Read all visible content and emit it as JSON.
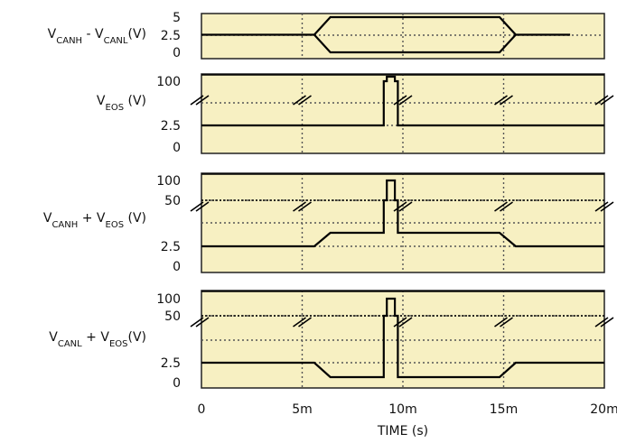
{
  "chart_data": {
    "type": "line",
    "xlabel": "TIME (s)",
    "xlim": [
      0,
      20
    ],
    "x_ticks": [
      {
        "value": 0,
        "label": "0"
      },
      {
        "value": 5,
        "label": "5m"
      },
      {
        "value": 10,
        "label": "10m"
      },
      {
        "value": 15,
        "label": "15m"
      },
      {
        "value": 20,
        "label": "20m"
      }
    ],
    "colors": {
      "panel_fill": "#f7f0c2",
      "trace": "#000000",
      "grid": "#555555"
    },
    "panels": [
      {
        "ylabel": {
          "base": "V",
          "sub1": "CANH",
          "mid": " - V",
          "sub2": "CANL",
          "tail": "(V)"
        },
        "y_ticks": [
          "5",
          "2.5",
          "0"
        ],
        "axis_breaks": false,
        "series": [
          {
            "x": [
              0,
              5.6,
              6.4,
              14.8,
              15.6,
              18.3
            ],
            "y": [
              2.5,
              2.5,
              5.0,
              5.0,
              2.5,
              2.5
            ]
          },
          {
            "x": [
              5.6,
              6.4,
              14.8,
              15.6
            ],
            "y": [
              2.5,
              0.0,
              0.0,
              2.5
            ]
          }
        ]
      },
      {
        "ylabel": {
          "base": "V",
          "sub1": "EOS",
          "mid": " (V)",
          "sub2": "",
          "tail": ""
        },
        "y_ticks": [
          "100",
          "2.5",
          "0"
        ],
        "axis_breaks": true,
        "series": [
          {
            "x": [
              0,
              9.05,
              9.05,
              9.2,
              9.2,
              9.6,
              9.6,
              9.75,
              9.75,
              20
            ],
            "y": [
              2.5,
              2.5,
              100,
              100,
              105,
              105,
              100,
              100,
              2.5,
              2.5
            ]
          }
        ]
      },
      {
        "ylabel": {
          "base": "V",
          "sub1": "CANH",
          "mid": " + V",
          "sub2": "EOS",
          "tail": " (V)"
        },
        "y_ticks": [
          "100",
          "50",
          "2.5",
          "0"
        ],
        "axis_breaks": true,
        "series": [
          {
            "x": [
              0,
              5.6,
              6.4,
              9.05,
              9.05,
              9.2,
              9.2,
              9.6,
              9.6,
              9.75,
              9.75,
              14.8,
              15.6,
              20
            ],
            "y": [
              2.5,
              2.5,
              3.5,
              3.5,
              50,
              50,
              100,
              100,
              50,
              50,
              3.5,
              3.5,
              2.5,
              2.5
            ]
          }
        ]
      },
      {
        "ylabel": {
          "base": "V",
          "sub1": "CANL",
          "mid": " + V",
          "sub2": "EOS",
          "tail": "(V)"
        },
        "y_ticks": [
          "100",
          "50",
          "2.5",
          "0"
        ],
        "axis_breaks": true,
        "series": [
          {
            "x": [
              0,
              5.6,
              6.4,
              9.05,
              9.05,
              9.2,
              9.2,
              9.6,
              9.6,
              9.75,
              9.75,
              14.8,
              15.6,
              20
            ],
            "y": [
              2.5,
              2.5,
              1.5,
              1.5,
              50,
              50,
              100,
              100,
              50,
              50,
              1.5,
              1.5,
              2.5,
              2.5
            ]
          }
        ]
      }
    ]
  }
}
